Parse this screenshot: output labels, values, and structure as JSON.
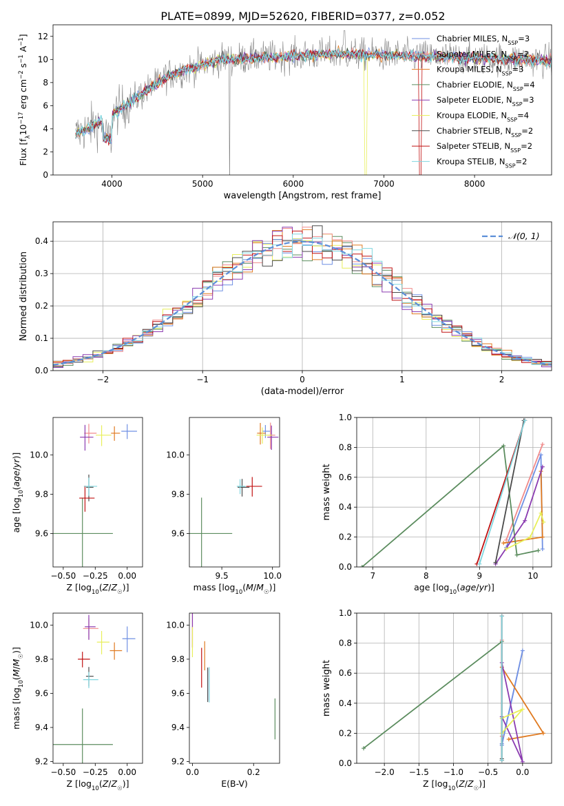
{
  "title": "PLATE=0899, MJD=52620, FIBERID=0377, z=0.052",
  "colors": [
    "#6f8fe3",
    "#f08a8a",
    "#e07a20",
    "#5b8c5e",
    "#8a3ab0",
    "#e8ef5a",
    "#4a4a4a",
    "#c01010",
    "#7fd6df"
  ],
  "chart_data": [
    {
      "id": "spectrum",
      "type": "line",
      "xlabel": "wavelength [Angstrom, rest frame]",
      "ylabel": "Flux [fλ10⁻¹⁷ erg cm⁻² s⁻¹ A⁻¹]",
      "xlim": [
        3350,
        8850
      ],
      "ylim": [
        0,
        13
      ],
      "xticks": [
        4000,
        5000,
        6000,
        7000,
        8000
      ],
      "yticks": [
        0,
        2,
        4,
        6,
        8,
        10,
        12
      ],
      "data_range": [
        3600,
        8850
      ],
      "legend_position": "top-right",
      "legend": [
        {
          "name": "Chabrier MILES, N",
          "sub": "SSP",
          "eq": "=3"
        },
        {
          "name": "Salpeter MILES, N",
          "sub": "SSP",
          "eq": "=2"
        },
        {
          "name": "Kroupa MILES, N",
          "sub": "SSP",
          "eq": "=3"
        },
        {
          "name": "Chabrier ELODIE, N",
          "sub": "SSP",
          "eq": "=4"
        },
        {
          "name": "Salpeter ELODIE, N",
          "sub": "SSP",
          "eq": "=3"
        },
        {
          "name": "Kroupa ELODIE, N",
          "sub": "SSP",
          "eq": "=4"
        },
        {
          "name": "Chabrier STELIB, N",
          "sub": "SSP",
          "eq": "=2"
        },
        {
          "name": "Salpeter STELIB, N",
          "sub": "SSP",
          "eq": "=2"
        },
        {
          "name": "Kroupa STELIB, N",
          "sub": "SSP",
          "eq": "=2"
        }
      ]
    },
    {
      "id": "residuals",
      "type": "bar",
      "xlabel": "(data-model)/error",
      "ylabel": "Normed distribution",
      "xlim": [
        -2.5,
        2.5
      ],
      "ylim": [
        0,
        0.46
      ],
      "xticks": [
        -2,
        -1,
        0,
        1,
        2
      ],
      "yticks": [
        0.0,
        0.1,
        0.2,
        0.3,
        0.4
      ],
      "grid": true,
      "legend_position": "top-right",
      "gaussian_label": "𝒩(0, 1)"
    },
    {
      "id": "age-vs-Z",
      "type": "scatter",
      "xlabel": "Z [log₁₀(Z/Z☉)]",
      "ylabel": "age  [log₁₀(age/yr)]",
      "xlim": [
        -0.58,
        0.12
      ],
      "ylim": [
        9.43,
        10.19
      ],
      "xticks": [
        -0.5,
        -0.25,
        0.0
      ],
      "yticks": [
        9.6,
        9.8,
        10.0
      ],
      "points": [
        {
          "x": 0.0,
          "y": 10.12,
          "c": 0
        },
        {
          "x": -0.3,
          "y": 10.11,
          "c": 1
        },
        {
          "x": -0.1,
          "y": 10.11,
          "c": 2
        },
        {
          "x": -0.35,
          "y": 9.6,
          "c": 3
        },
        {
          "x": -0.33,
          "y": 10.09,
          "c": 4
        },
        {
          "x": -0.2,
          "y": 10.1,
          "c": 5
        },
        {
          "x": -0.3,
          "y": 9.835,
          "c": 6
        },
        {
          "x": -0.33,
          "y": 9.78,
          "c": 7
        },
        {
          "x": -0.3,
          "y": 9.84,
          "c": 8
        }
      ]
    },
    {
      "id": "age-vs-mass",
      "type": "scatter",
      "xlabel": "mass [log₁₀(M/M☉)]",
      "ylabel": "",
      "xlim": [
        9.18,
        10.07
      ],
      "ylim": [
        9.43,
        10.19
      ],
      "xticks": [
        9.5,
        10.0
      ],
      "yticks": [
        9.6,
        9.8,
        10.0
      ],
      "points": [
        {
          "x": 9.93,
          "y": 10.12,
          "c": 0
        },
        {
          "x": 9.98,
          "y": 10.1,
          "c": 1
        },
        {
          "x": 9.88,
          "y": 10.11,
          "c": 2
        },
        {
          "x": 9.3,
          "y": 9.6,
          "c": 3
        },
        {
          "x": 9.99,
          "y": 10.09,
          "c": 4
        },
        {
          "x": 9.9,
          "y": 10.1,
          "c": 5
        },
        {
          "x": 9.7,
          "y": 9.835,
          "c": 6
        },
        {
          "x": 9.8,
          "y": 9.84,
          "c": 7
        },
        {
          "x": 9.68,
          "y": 9.84,
          "c": 8
        }
      ]
    },
    {
      "id": "weight-vs-age",
      "type": "line",
      "xlabel": "age  [log₁₀(age/yr)]",
      "ylabel": "mass weight",
      "xlim": [
        6.7,
        10.35
      ],
      "ylim": [
        0,
        1
      ],
      "xticks": [
        7,
        8,
        9,
        10
      ],
      "yticks": [
        0.0,
        0.2,
        0.4,
        0.6,
        0.8,
        1.0
      ],
      "grid": true,
      "series": [
        {
          "c": 0,
          "x": [
            10.18,
            10.15,
            9.5
          ],
          "y": [
            0.12,
            0.75,
            0.13
          ]
        },
        {
          "c": 1,
          "x": [
            9.5,
            10.18
          ],
          "y": [
            0.18,
            0.82
          ]
        },
        {
          "c": 2,
          "x": [
            9.45,
            10.18,
            10.15
          ],
          "y": [
            0.16,
            0.2,
            0.64
          ]
        },
        {
          "c": 3,
          "x": [
            6.8,
            9.45,
            9.7,
            10.1
          ],
          "y": [
            0.0,
            0.81,
            0.08,
            0.11
          ]
        },
        {
          "c": 4,
          "x": [
            9.3,
            9.85,
            10.18
          ],
          "y": [
            0.02,
            0.31,
            0.67
          ]
        },
        {
          "c": 5,
          "x": [
            9.5,
            9.95,
            10.15,
            10.2
          ],
          "y": [
            0.12,
            0.2,
            0.36,
            0.3
          ]
        },
        {
          "c": 6,
          "x": [
            9.3,
            9.83
          ],
          "y": [
            0.03,
            0.98
          ]
        },
        {
          "c": 7,
          "x": [
            8.95,
            9.85
          ],
          "y": [
            0.02,
            0.98
          ]
        },
        {
          "c": 8,
          "x": [
            9.0,
            9.85
          ],
          "y": [
            0.02,
            0.98
          ]
        }
      ]
    },
    {
      "id": "mass-vs-Z",
      "type": "scatter",
      "xlabel": "Z [log₁₀(Z/Z☉)]",
      "ylabel": "mass [log₁₀(M/M☉)]",
      "xlim": [
        -0.58,
        0.12
      ],
      "ylim": [
        9.19,
        10.07
      ],
      "xticks": [
        -0.5,
        -0.25,
        0.0
      ],
      "yticks": [
        9.2,
        9.4,
        9.6,
        9.8,
        10.0
      ],
      "points": [
        {
          "x": 0.0,
          "y": 9.92,
          "c": 0
        },
        {
          "x": -0.3,
          "y": 9.98,
          "c": 1
        },
        {
          "x": -0.1,
          "y": 9.85,
          "c": 2
        },
        {
          "x": -0.35,
          "y": 9.3,
          "c": 3
        },
        {
          "x": -0.3,
          "y": 9.99,
          "c": 4
        },
        {
          "x": -0.2,
          "y": 9.9,
          "c": 5
        },
        {
          "x": -0.3,
          "y": 9.7,
          "c": 6
        },
        {
          "x": -0.35,
          "y": 9.8,
          "c": 7
        },
        {
          "x": -0.3,
          "y": 9.68,
          "c": 8
        }
      ]
    },
    {
      "id": "mass-vs-EBV",
      "type": "scatter",
      "xlabel": "E(B-V)",
      "ylabel": "",
      "xlim": [
        -0.01,
        0.285
      ],
      "ylim": [
        9.19,
        10.07
      ],
      "xticks": [
        0.0,
        0.2
      ],
      "yticks": [
        9.2,
        9.4,
        9.6,
        9.8,
        10.0
      ],
      "points": [
        {
          "x": 0.05,
          "y": 9.65,
          "c": 0
        },
        {
          "x": 0.0,
          "y": 9.97,
          "c": 1
        },
        {
          "x": 0.04,
          "y": 9.82,
          "c": 2
        },
        {
          "x": 0.27,
          "y": 9.45,
          "c": 3
        },
        {
          "x": 0.0,
          "y": 9.98,
          "c": 4
        },
        {
          "x": 0.0,
          "y": 9.9,
          "c": 5
        },
        {
          "x": 0.05,
          "y": 9.65,
          "c": 6
        },
        {
          "x": 0.03,
          "y": 9.75,
          "c": 7
        },
        {
          "x": 0.055,
          "y": 9.65,
          "c": 8
        }
      ]
    },
    {
      "id": "weight-vs-Z",
      "type": "line",
      "xlabel": "Z [log₁₀(Z/Z☉)]",
      "ylabel": "mass weight",
      "xlim": [
        -2.4,
        0.42
      ],
      "ylim": [
        0,
        1
      ],
      "xticks": [
        -2.0,
        -1.5,
        -1.0,
        -0.5,
        0.0
      ],
      "yticks": [
        0.0,
        0.2,
        0.4,
        0.6,
        0.8,
        1.0
      ],
      "grid": true,
      "series": [
        {
          "c": 0,
          "x": [
            -0.3,
            0.0,
            -0.3
          ],
          "y": [
            0.13,
            0.75,
            0.12
          ]
        },
        {
          "c": 1,
          "x": [
            -0.3,
            -0.3
          ],
          "y": [
            0.18,
            0.82
          ]
        },
        {
          "c": 2,
          "x": [
            -0.3,
            0.3,
            -0.2
          ],
          "y": [
            0.64,
            0.2,
            0.16
          ]
        },
        {
          "c": 3,
          "x": [
            -2.3,
            -0.3,
            -0.3
          ],
          "y": [
            0.1,
            0.81,
            0.02
          ]
        },
        {
          "c": 4,
          "x": [
            -0.3,
            0.0,
            -0.3
          ],
          "y": [
            0.67,
            0.01,
            0.31
          ]
        },
        {
          "c": 5,
          "x": [
            -0.3,
            0.0,
            -0.3
          ],
          "y": [
            0.3,
            0.36,
            0.2
          ]
        },
        {
          "c": 6,
          "x": [
            -0.3,
            -0.3
          ],
          "y": [
            0.03,
            0.98
          ]
        },
        {
          "c": 7,
          "x": [
            -0.3,
            -0.3
          ],
          "y": [
            0.02,
            0.98
          ]
        },
        {
          "c": 8,
          "x": [
            -0.3,
            -0.3
          ],
          "y": [
            0.02,
            0.98
          ]
        }
      ]
    }
  ]
}
